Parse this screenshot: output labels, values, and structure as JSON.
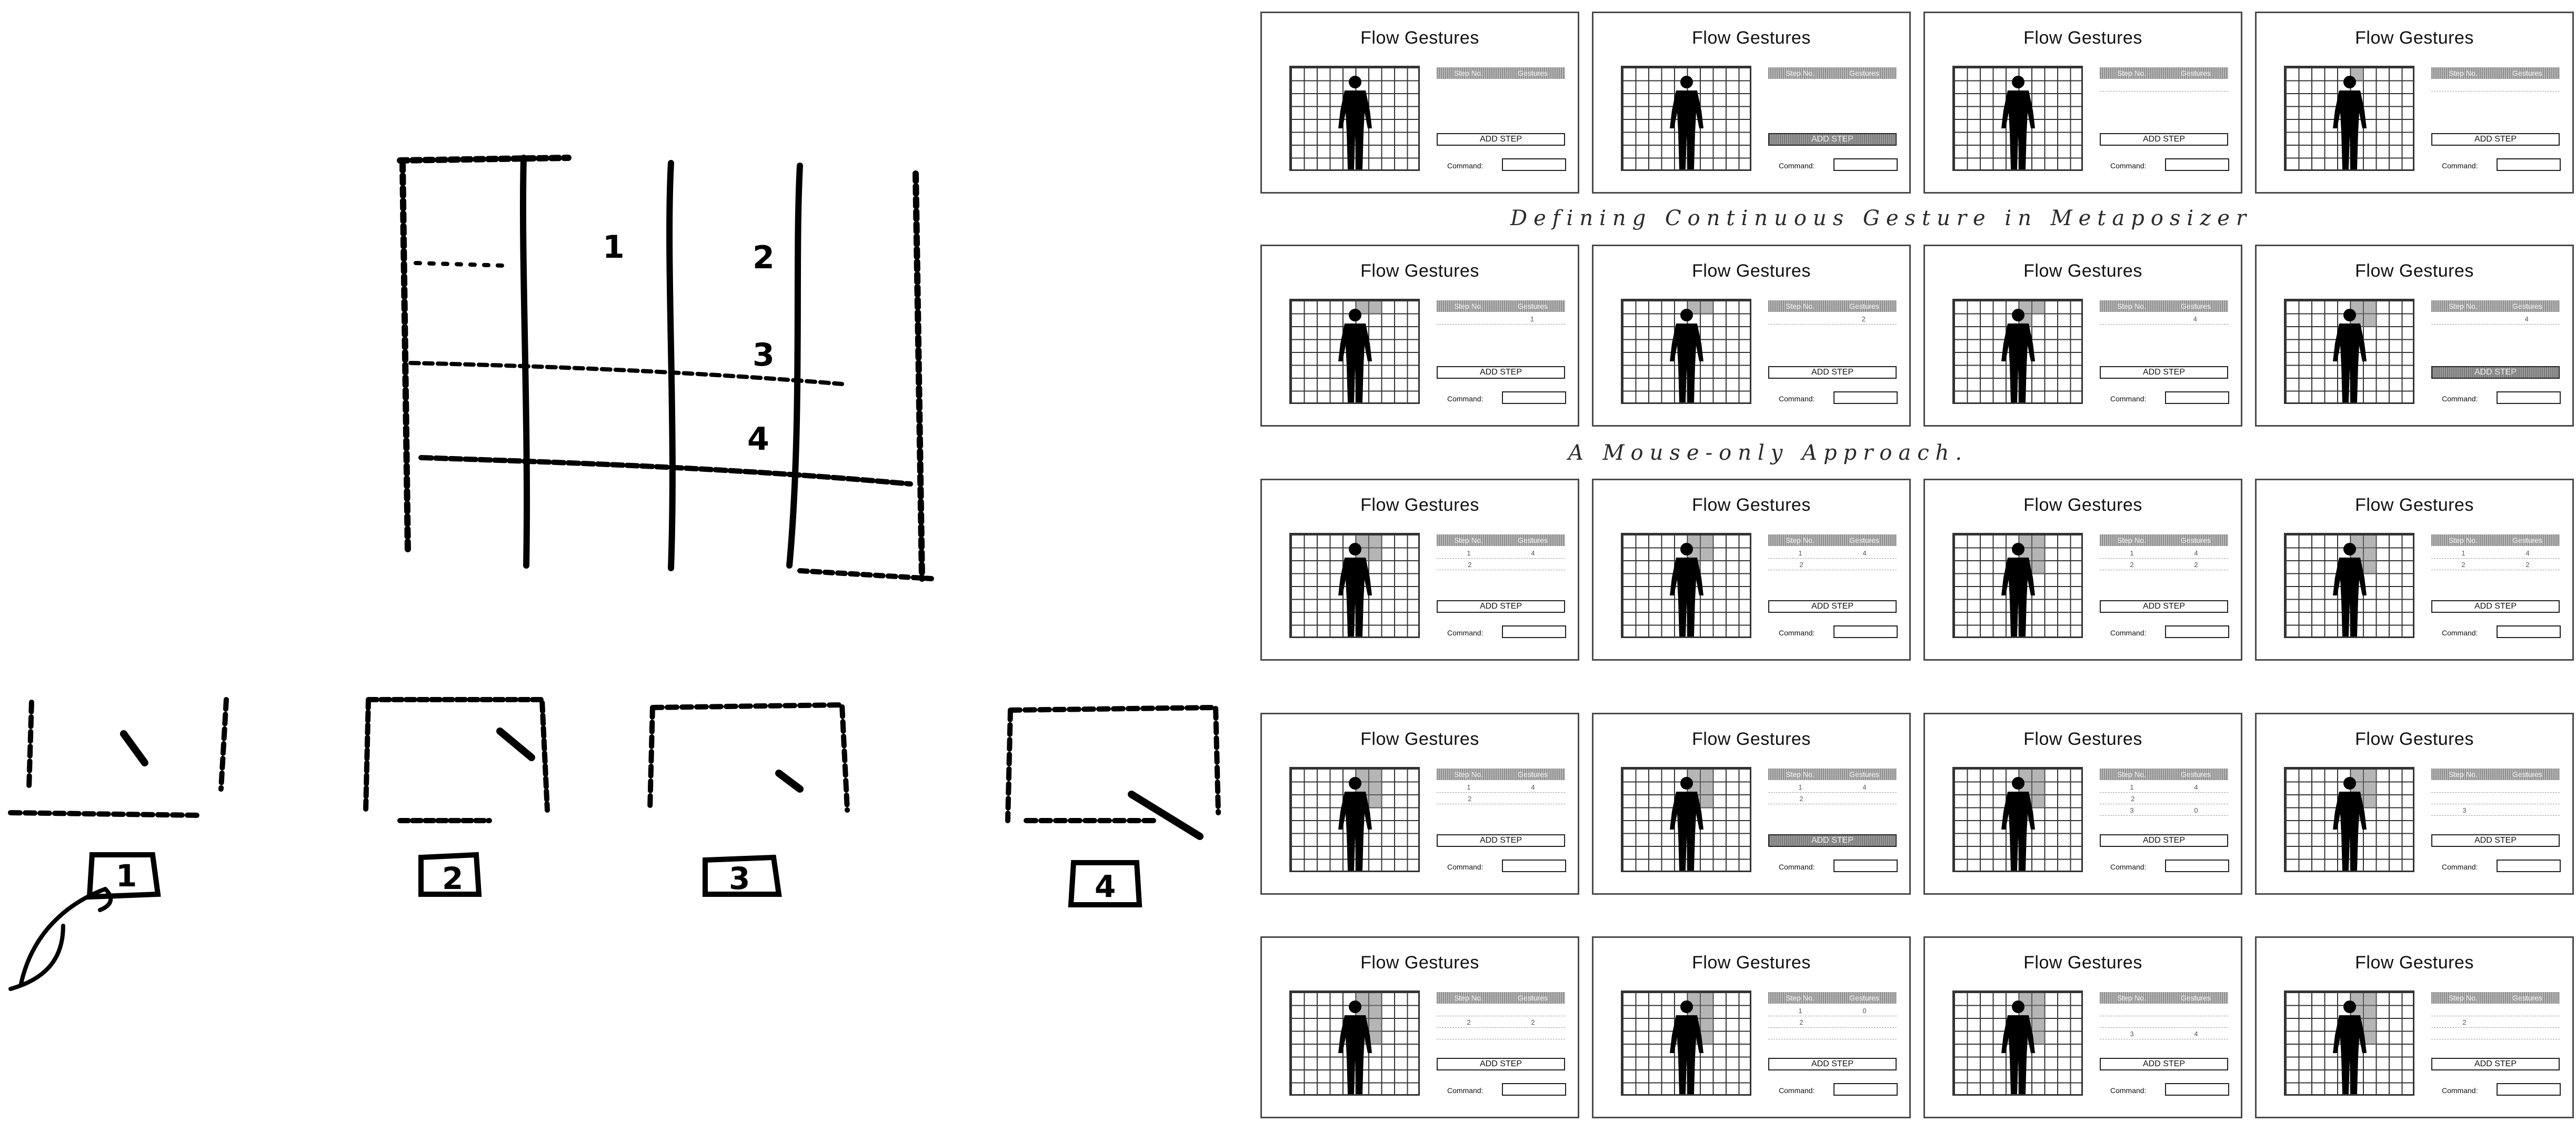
{
  "frame_title": "Flow Gestures",
  "add_step_label": "ADD STEP",
  "command_label": "Command:",
  "table_headers": [
    "Step No.",
    "Gestures"
  ],
  "caption_top": "Defining Continuous Gesture in Metaposizer",
  "caption_middle": "A Mouse-only Approach.",
  "sketch": {
    "grid_numbers": [
      "1",
      "2",
      "3",
      "4"
    ],
    "step_labels": [
      "1",
      "2",
      "3",
      "4"
    ]
  },
  "frames": [
    {
      "cells": [],
      "rows": [],
      "pressed": false
    },
    {
      "cells": [],
      "rows": [],
      "pressed": true
    },
    {
      "cells": [],
      "rows": [
        [
          "",
          ""
        ]
      ],
      "pressed": false
    },
    {
      "cells": [
        [
          5,
          0
        ]
      ],
      "rows": [
        [
          "",
          ""
        ]
      ],
      "pressed": false
    },
    {
      "cells": [
        [
          5,
          0
        ],
        [
          6,
          0
        ]
      ],
      "rows": [
        [
          "",
          "1"
        ]
      ],
      "pressed": false
    },
    {
      "cells": [
        [
          5,
          0
        ],
        [
          6,
          0
        ]
      ],
      "rows": [
        [
          "",
          "2"
        ]
      ],
      "pressed": false
    },
    {
      "cells": [
        [
          5,
          0
        ],
        [
          6,
          0
        ],
        [
          5,
          1
        ]
      ],
      "rows": [
        [
          "",
          "4"
        ]
      ],
      "pressed": false
    },
    {
      "cells": [
        [
          5,
          0
        ],
        [
          6,
          0
        ],
        [
          5,
          1
        ],
        [
          6,
          1
        ]
      ],
      "rows": [
        [
          "",
          "4"
        ]
      ],
      "pressed": true
    },
    {
      "cells": [
        [
          5,
          0
        ],
        [
          6,
          0
        ],
        [
          5,
          1
        ],
        [
          6,
          1
        ]
      ],
      "rows": [
        [
          "1",
          "4"
        ],
        [
          "2",
          ""
        ]
      ],
      "pressed": false
    },
    {
      "cells": [
        [
          5,
          0
        ],
        [
          6,
          0
        ],
        [
          5,
          1
        ],
        [
          6,
          1
        ],
        [
          5,
          2
        ]
      ],
      "rows": [
        [
          "1",
          "4"
        ],
        [
          "2",
          ""
        ]
      ],
      "pressed": false
    },
    {
      "cells": [
        [
          5,
          0
        ],
        [
          6,
          0
        ],
        [
          5,
          1
        ],
        [
          6,
          1
        ],
        [
          5,
          2
        ],
        [
          6,
          2
        ]
      ],
      "rows": [
        [
          "1",
          "4"
        ],
        [
          "2",
          "2"
        ]
      ],
      "pressed": false
    },
    {
      "cells": [
        [
          5,
          0
        ],
        [
          6,
          0
        ],
        [
          5,
          1
        ],
        [
          6,
          1
        ],
        [
          5,
          2
        ],
        [
          6,
          2
        ]
      ],
      "rows": [
        [
          "1",
          "4"
        ],
        [
          "2",
          "2"
        ]
      ],
      "pressed": false
    },
    {
      "cells": [
        [
          5,
          0
        ],
        [
          6,
          0
        ],
        [
          5,
          1
        ],
        [
          6,
          1
        ],
        [
          5,
          2
        ],
        [
          6,
          2
        ]
      ],
      "rows": [
        [
          "1",
          "4"
        ],
        [
          "2",
          ""
        ]
      ],
      "pressed": false
    },
    {
      "cells": [
        [
          5,
          0
        ],
        [
          6,
          0
        ],
        [
          5,
          1
        ],
        [
          6,
          1
        ],
        [
          5,
          2
        ],
        [
          6,
          2
        ]
      ],
      "rows": [
        [
          "1",
          "4"
        ],
        [
          "2",
          ""
        ]
      ],
      "pressed": true
    },
    {
      "cells": [
        [
          5,
          0
        ],
        [
          6,
          0
        ],
        [
          5,
          1
        ],
        [
          6,
          1
        ],
        [
          5,
          2
        ],
        [
          6,
          2
        ],
        [
          5,
          3
        ]
      ],
      "rows": [
        [
          "1",
          "4"
        ],
        [
          "2",
          ""
        ],
        [
          "3",
          "0"
        ]
      ],
      "pressed": false
    },
    {
      "cells": [
        [
          5,
          0
        ],
        [
          6,
          0
        ],
        [
          5,
          1
        ],
        [
          6,
          1
        ],
        [
          5,
          2
        ],
        [
          6,
          2
        ],
        [
          5,
          3
        ]
      ],
      "rows": [
        [
          "",
          ""
        ],
        [
          "",
          ""
        ],
        [
          "3",
          ""
        ]
      ],
      "pressed": false
    },
    {
      "cells": [
        [
          5,
          0
        ],
        [
          6,
          0
        ],
        [
          5,
          1
        ],
        [
          6,
          1
        ],
        [
          5,
          2
        ],
        [
          6,
          2
        ],
        [
          5,
          3
        ],
        [
          6,
          3
        ]
      ],
      "rows": [
        [
          "",
          ""
        ],
        [
          "2",
          "2"
        ],
        [
          "",
          ""
        ]
      ],
      "pressed": false
    },
    {
      "cells": [
        [
          5,
          0
        ],
        [
          6,
          0
        ],
        [
          5,
          1
        ],
        [
          6,
          1
        ],
        [
          5,
          2
        ],
        [
          6,
          2
        ],
        [
          5,
          3
        ],
        [
          6,
          3
        ],
        [
          4,
          3
        ]
      ],
      "rows": [
        [
          "1",
          "0"
        ],
        [
          "2",
          ""
        ],
        [
          "",
          ""
        ]
      ],
      "pressed": false
    },
    {
      "cells": [
        [
          5,
          0
        ],
        [
          6,
          0
        ],
        [
          5,
          1
        ],
        [
          6,
          1
        ],
        [
          5,
          2
        ],
        [
          6,
          2
        ],
        [
          5,
          3
        ],
        [
          6,
          3
        ],
        [
          4,
          3
        ]
      ],
      "rows": [
        [
          "",
          ""
        ],
        [
          "",
          ""
        ],
        [
          "3",
          "4"
        ]
      ],
      "pressed": false
    },
    {
      "cells": [
        [
          5,
          0
        ],
        [
          6,
          0
        ],
        [
          5,
          1
        ],
        [
          6,
          1
        ],
        [
          5,
          2
        ],
        [
          6,
          2
        ],
        [
          5,
          3
        ],
        [
          6,
          3
        ],
        [
          4,
          3
        ]
      ],
      "rows": [
        [
          "",
          ""
        ],
        [
          "2",
          ""
        ],
        [
          "",
          ""
        ]
      ],
      "pressed": false
    }
  ]
}
